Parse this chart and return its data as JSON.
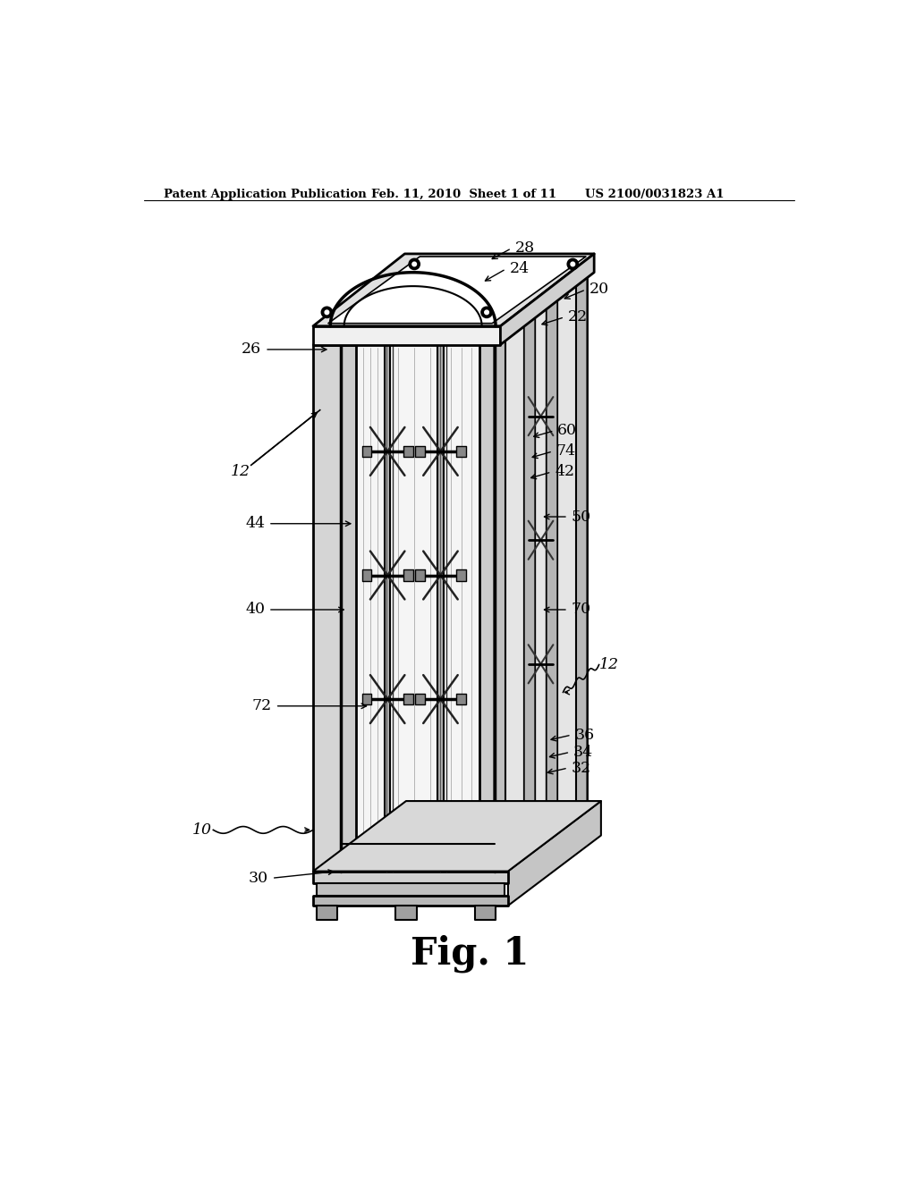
{
  "background_color": "#ffffff",
  "header_left": "Patent Application Publication",
  "header_center": "Feb. 11, 2010  Sheet 1 of 11",
  "header_right": "US 2100/0031823 A1",
  "figure_label": "Fig. 1",
  "text_color": "#000000",
  "line_color": "#000000"
}
